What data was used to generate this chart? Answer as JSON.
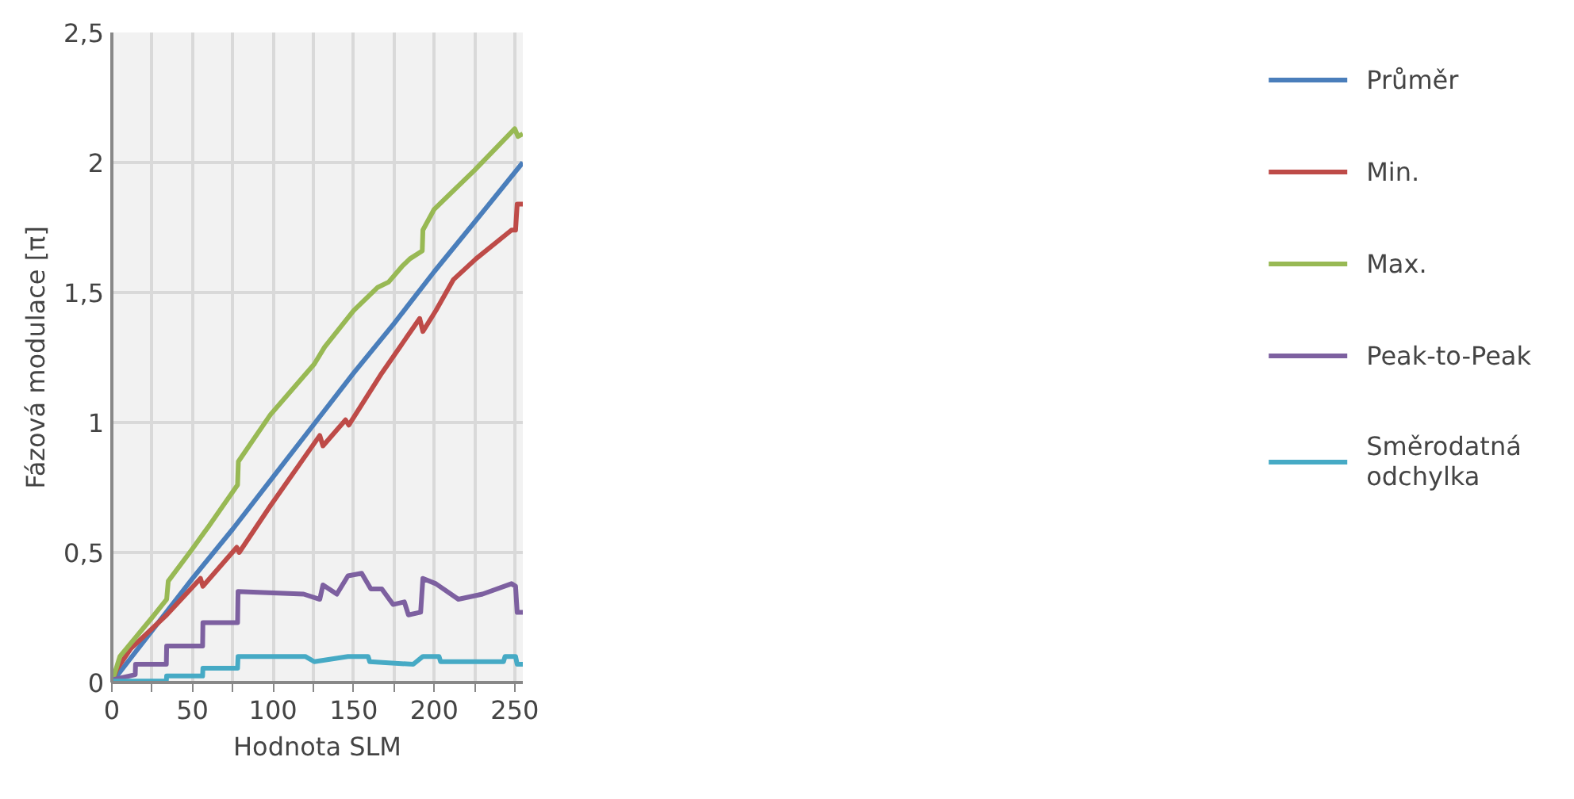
{
  "chart_data": {
    "type": "line",
    "xlabel": "Hodnota SLM",
    "ylabel": "Fázová modulace [π]",
    "xlim": [
      0,
      255
    ],
    "ylim": [
      0,
      2.5
    ],
    "xticks": [
      0,
      {
        "value": 25,
        "label": null
      },
      50,
      {
        "value": 75,
        "label": null
      },
      100,
      {
        "value": 125,
        "label": null
      },
      150,
      {
        "value": 175,
        "label": null
      },
      200,
      {
        "value": 225,
        "label": null
      },
      250
    ],
    "yticks": [
      0,
      {
        "value": 0.5,
        "label": "0,5"
      },
      1,
      {
        "value": 1.5,
        "label": "1,5"
      },
      2,
      {
        "value": 2.5,
        "label": "2,5"
      }
    ],
    "grid": true,
    "legend": "right",
    "line_style": "solid",
    "series": [
      {
        "name": "Průměr",
        "color": "#4a7ebb",
        "x": [
          0,
          10,
          25,
          50,
          75,
          100,
          125,
          150,
          175,
          200,
          225,
          255
        ],
        "values": [
          0,
          0.08,
          0.2,
          0.4,
          0.59,
          0.79,
          0.99,
          1.19,
          1.38,
          1.58,
          1.77,
          2.0
        ]
      },
      {
        "name": "Min.",
        "color": "#be4b48",
        "x": [
          0,
          3,
          11.7,
          34,
          55,
          56.5,
          77.5,
          79,
          98.4,
          129,
          131,
          145,
          147,
          167.5,
          191,
          193,
          201,
          212,
          226,
          248,
          250.5,
          251.5,
          255
        ],
        "values": [
          0,
          0.05,
          0.13,
          0.26,
          0.4,
          0.37,
          0.52,
          0.5,
          0.68,
          0.95,
          0.91,
          1.01,
          0.99,
          1.19,
          1.4,
          1.35,
          1.43,
          1.55,
          1.63,
          1.74,
          1.74,
          1.84,
          1.84
        ]
      },
      {
        "name": "Max.",
        "color": "#98b954",
        "x": [
          0,
          5,
          25,
          34,
          35,
          49.5,
          60,
          78,
          78.5,
          98.4,
          125.6,
          132,
          150,
          165,
          171.7,
          180,
          185,
          192.6,
          193,
          200,
          225,
          250,
          252,
          255
        ],
        "values": [
          0,
          0.1,
          0.25,
          0.32,
          0.39,
          0.51,
          0.6,
          0.76,
          0.85,
          1.03,
          1.225,
          1.29,
          1.43,
          1.52,
          1.54,
          1.6,
          1.63,
          1.66,
          1.74,
          1.82,
          1.97,
          2.13,
          2.1,
          2.11
        ]
      },
      {
        "name": "Peak-to-Peak",
        "color": "#7d60a0",
        "x": [
          0,
          14.5,
          14.7,
          33.8,
          34,
          56.3,
          56.5,
          78,
          78.3,
          119,
          129,
          131,
          139.6,
          146.5,
          155,
          160.7,
          167.5,
          174.5,
          181.5,
          184,
          191.6,
          193,
          201,
          215,
          230,
          248,
          250.5,
          251.5,
          255
        ],
        "values": [
          0.01,
          0.03,
          0.07,
          0.07,
          0.14,
          0.14,
          0.23,
          0.23,
          0.35,
          0.34,
          0.32,
          0.375,
          0.34,
          0.41,
          0.42,
          0.36,
          0.36,
          0.3,
          0.31,
          0.26,
          0.27,
          0.4,
          0.38,
          0.32,
          0.34,
          0.38,
          0.37,
          0.27,
          0.27
        ]
      },
      {
        "name": "Směrodatná odchylka",
        "color": "#46aac5",
        "x": [
          0,
          33.8,
          34,
          56.3,
          56.5,
          78,
          78.3,
          120,
          125.6,
          146.5,
          159,
          160,
          187,
          193,
          203,
          204,
          243,
          244,
          250.5,
          251.5,
          255
        ],
        "values": [
          0.005,
          0.005,
          0.025,
          0.025,
          0.055,
          0.055,
          0.1,
          0.1,
          0.08,
          0.1,
          0.1,
          0.08,
          0.07,
          0.1,
          0.1,
          0.08,
          0.08,
          0.1,
          0.1,
          0.07,
          0.07
        ]
      }
    ]
  }
}
